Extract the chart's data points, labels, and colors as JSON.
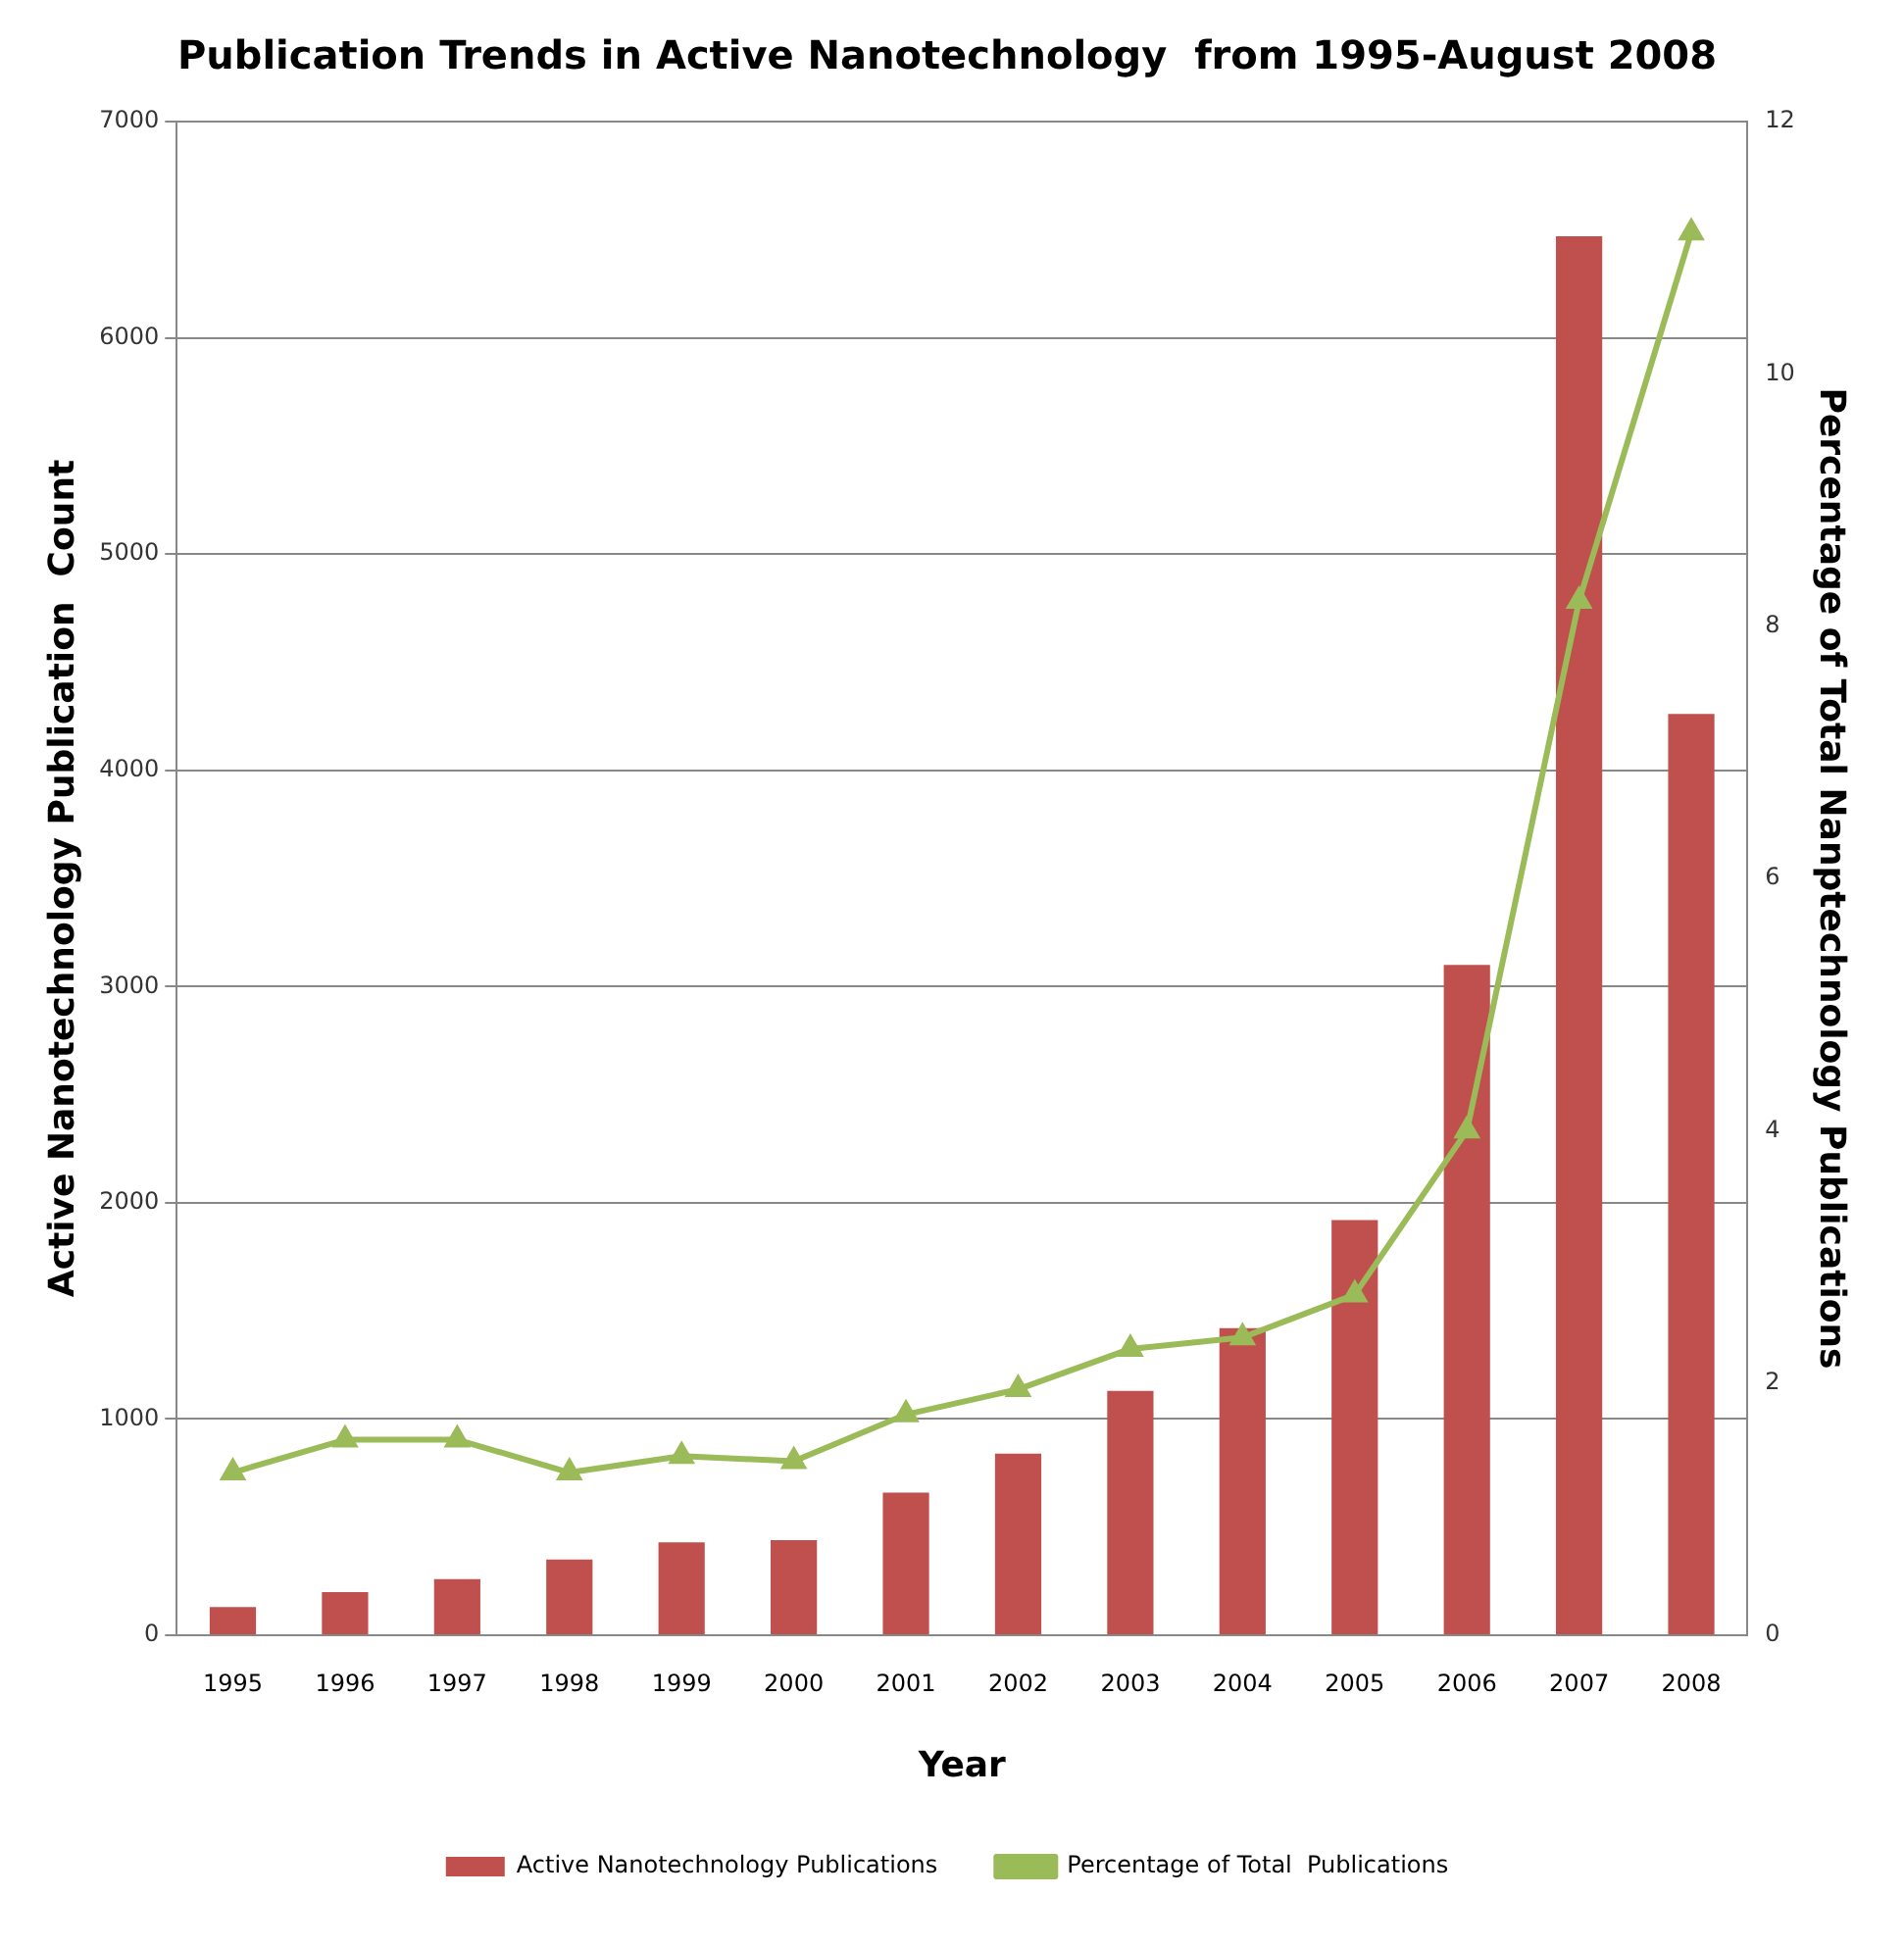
{
  "chart_data": {
    "type": "bar",
    "title": "Publication Trends in Active Nanotechnology  from 1995-August 2008",
    "xlabel": "Year",
    "ylabel": "Active Nanotechnology Publication  Count",
    "y2label": "Percentage of Total Nanptechnology Publications",
    "categories": [
      "1995",
      "1996",
      "1997",
      "1998",
      "1999",
      "2000",
      "2001",
      "2002",
      "2003",
      "2004",
      "2005",
      "2006",
      "2007",
      "2008"
    ],
    "series": [
      {
        "name": "Active Nanotechnology Publications",
        "color": "#c0504d",
        "values": [
          130,
          200,
          260,
          350,
          430,
          440,
          660,
          840,
          1130,
          1420,
          1920,
          3100,
          6470,
          4260
        ]
      },
      {
        "name": "Percentage of Total  Publications",
        "type": "line",
        "axis": "y2",
        "color": "#9bbb59",
        "marker": "triangle",
        "values": [
          1.29,
          1.55,
          1.55,
          1.29,
          1.42,
          1.38,
          1.75,
          1.95,
          2.27,
          2.36,
          2.7,
          4.0,
          8.2,
          11.12
        ]
      }
    ],
    "ylim": [
      0,
      7000
    ],
    "yticks": [
      0,
      1000,
      2000,
      3000,
      4000,
      5000,
      6000,
      7000
    ],
    "y2lim": [
      0,
      12
    ],
    "y2ticks": [
      0,
      2,
      4,
      6,
      8,
      10,
      12
    ],
    "grid": "y",
    "legend": "bottom"
  }
}
